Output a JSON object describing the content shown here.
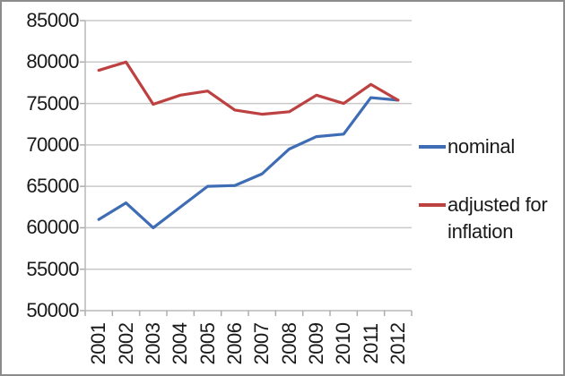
{
  "chart_data": {
    "type": "line",
    "title": "",
    "xlabel": "",
    "ylabel": "",
    "categories": [
      "2001",
      "2002",
      "2003",
      "2004",
      "2005",
      "2006",
      "2007",
      "2008",
      "2009",
      "2010",
      "2011",
      "2012"
    ],
    "series": [
      {
        "name": "nominal",
        "color": "#3E6DB5",
        "values": [
          61000,
          63000,
          60000,
          62500,
          65000,
          65100,
          66500,
          69500,
          71000,
          71300,
          75700,
          75400
        ]
      },
      {
        "name": "adjusted for inflation",
        "color": "#BE4141",
        "values": [
          79000,
          80000,
          74900,
          76000,
          76500,
          74200,
          73700,
          74000,
          76000,
          75000,
          77300,
          75400
        ]
      }
    ],
    "ylim": [
      50000,
      85000
    ],
    "ytick_step": 5000,
    "yticks": [
      "85000",
      "80000",
      "75000",
      "70000",
      "65000",
      "60000",
      "55000",
      "50000"
    ],
    "grid": true,
    "legend_position": "right"
  },
  "legend": {
    "items": [
      {
        "label": "nominal",
        "color": "#3E6DB5"
      },
      {
        "label": "adjusted for inflation",
        "color": "#BE4141"
      }
    ]
  },
  "colors": {
    "gridline": "#C9C9C9",
    "axis": "#B8B8B8",
    "tick": "#ADADAD",
    "text": "#1A1A1A",
    "border": "#8C8C8C",
    "background": "#FFFFFF"
  }
}
